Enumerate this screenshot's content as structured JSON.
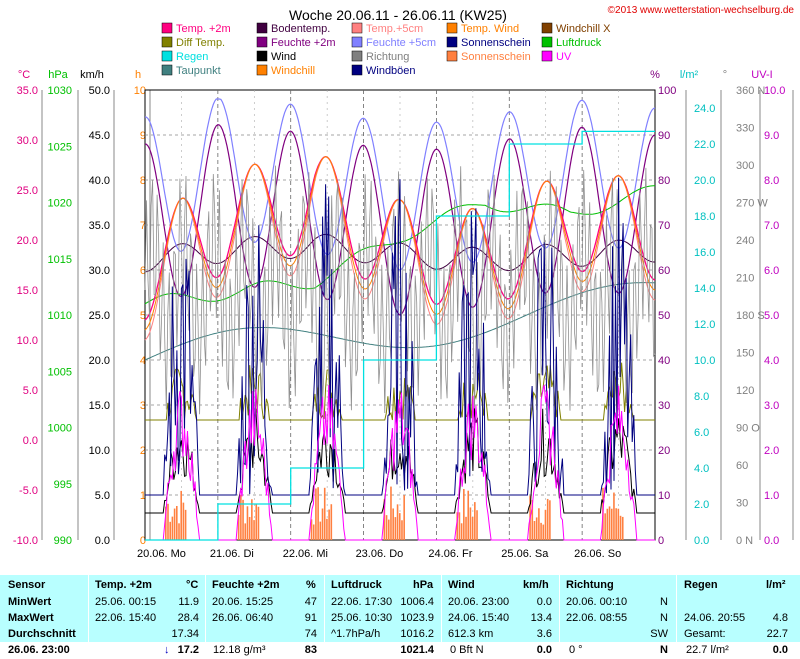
{
  "title": "Woche 20.06.11 - 26.06.11 (KW25)",
  "copyright": "©2013 www.wetterstation-wechselburg.de",
  "legend": [
    {
      "label": "Temp. +2m",
      "color": "#ff0080"
    },
    {
      "label": "Bodentemp.",
      "color": "#400040"
    },
    {
      "label": "Temp.+5cm",
      "color": "#ff8080"
    },
    {
      "label": "Temp. Wind",
      "color": "#ff8000"
    },
    {
      "label": "Windchill X",
      "color": "#804000"
    },
    {
      "label": "Diff Temp.",
      "color": "#808000"
    },
    {
      "label": "Feuchte +2m",
      "color": "#800080"
    },
    {
      "label": "Feuchte +5cm",
      "color": "#8080ff"
    },
    {
      "label": "Sonnenschein",
      "color": "#000080"
    },
    {
      "label": "Luftdruck",
      "color": "#00c000"
    },
    {
      "label": "Regen",
      "color": "#00e0e0"
    },
    {
      "label": "Wind",
      "color": "#000000"
    },
    {
      "label": "Richtung",
      "color": "#808080"
    },
    {
      "label": "Sonnenschein",
      "color": "#ff8040"
    },
    {
      "label": "UV",
      "color": "#ff00ff"
    },
    {
      "label": "Taupunkt",
      "color": "#408080"
    },
    {
      "label": "Windchill",
      "color": "#ff8000"
    },
    {
      "label": "Windböen",
      "color": "#000080"
    }
  ],
  "axes": {
    "temp": {
      "unit": "°C",
      "ticks": [
        "35.0",
        "30.0",
        "25.0",
        "20.0",
        "15.0",
        "10.0",
        "5.0",
        "0.0",
        "-5.0",
        "-10.0"
      ],
      "color": "#e00080"
    },
    "hpa": {
      "unit": "hPa",
      "ticks": [
        "1030",
        "1025",
        "1020",
        "1015",
        "1010",
        "1005",
        "1000",
        "995",
        "990"
      ],
      "color": "#00c000"
    },
    "kmh": {
      "unit": "km/h",
      "ticks": [
        "50.0",
        "45.0",
        "40.0",
        "35.0",
        "30.0",
        "25.0",
        "20.0",
        "15.0",
        "10.0",
        "5.0",
        "0.0"
      ],
      "color": "#000000"
    },
    "h": {
      "unit": "h",
      "ticks": [
        "10",
        "9",
        "8",
        "7",
        "6",
        "5",
        "4",
        "3",
        "2",
        "1",
        "0"
      ],
      "color": "#ff8000"
    },
    "pct": {
      "unit": "%",
      "ticks": [
        "100",
        "90",
        "80",
        "70",
        "60",
        "50",
        "40",
        "30",
        "20",
        "10",
        "0"
      ],
      "color": "#800080"
    },
    "rain": {
      "unit": "l/m²",
      "ticks": [
        "24.0",
        "22.0",
        "20.0",
        "18.0",
        "16.0",
        "14.0",
        "12.0",
        "10.0",
        "8.0",
        "6.0",
        "4.0",
        "2.0",
        "0.0"
      ],
      "color": "#00c0c0"
    },
    "dir": {
      "unit": "°",
      "ticks": [
        "360 N",
        "330",
        "300",
        "270 W",
        "240",
        "210",
        "180 S",
        "150",
        "120",
        "90  O",
        "60",
        "30",
        "0   N"
      ],
      "color": "#808080"
    },
    "uv": {
      "unit": "UV-I",
      "ticks": [
        "10.0",
        "9.0",
        "8.0",
        "7.0",
        "6.0",
        "5.0",
        "4.0",
        "3.0",
        "2.0",
        "1.0",
        "0.0"
      ],
      "color": "#c000c0"
    }
  },
  "days": [
    "20.06.  Mo",
    "21.06.  Di",
    "22.06.  Mi",
    "23.06.  Do",
    "24.06.  Fr",
    "25.06.  Sa",
    "26.06.  So"
  ],
  "chart_data": {
    "type": "line",
    "title": "Woche 20.06.11 - 26.06.11 (KW25)",
    "x": [
      "20.06.",
      "21.06.",
      "22.06.",
      "23.06.",
      "24.06.",
      "25.06.",
      "26.06."
    ],
    "ylim_temp": [
      -10,
      35
    ],
    "series": [
      {
        "name": "Temp. +2m",
        "unit": "°C",
        "values": [
          17,
          22,
          24,
          19,
          18,
          22,
          21
        ]
      },
      {
        "name": "Feuchte +2m",
        "unit": "%",
        "values": [
          70,
          75,
          72,
          68,
          70,
          74,
          72
        ]
      },
      {
        "name": "Luftdruck",
        "unit": "hPa",
        "values": [
          1011,
          1012,
          1013,
          1017,
          1020,
          1019,
          1021
        ]
      },
      {
        "name": "Regen",
        "unit": "l/m²",
        "values": [
          0.0,
          2.0,
          4.0,
          10.0,
          18.0,
          22.0,
          22.7
        ]
      }
    ]
  },
  "table": {
    "headers": {
      "sensor": "Sensor",
      "temp": "Temp. +2m",
      "temp_unit": "°C",
      "feuchte": "Feuchte +2m",
      "feuchte_unit": "%",
      "druck": "Luftdruck",
      "druck_unit": "hPa",
      "wind": "Wind",
      "wind_unit": "km/h",
      "richtung": "Richtung",
      "regen": "Regen",
      "regen_unit": "l/m²"
    },
    "rows": [
      {
        "label": "MinWert",
        "temp_time": "25.06.  00:15",
        "temp_val": "11.9",
        "feuchte_time": "20.06.  15:25",
        "feuchte_val": "47",
        "druck_time": "22.06.  17:30",
        "druck_val": "1006.4",
        "wind_time": "20.06.  23:00",
        "wind_val": "0.0",
        "richtung_time": "20.06.  00:10",
        "richtung_val": "N",
        "regen_time": "",
        "regen_val": ""
      },
      {
        "label": "MaxWert",
        "temp_time": "22.06.  15:40",
        "temp_val": "28.4",
        "feuchte_time": "26.06.  06:40",
        "feuchte_val": "91",
        "druck_time": "25.06.  10:30",
        "druck_val": "1023.9",
        "wind_time": "24.06.  15:40",
        "wind_val": "13.4",
        "richtung_time": "22.06.  08:55",
        "richtung_val": "N",
        "regen_time": "24.06.  20:55",
        "regen_val": "4.8"
      },
      {
        "label": "Durchschnitt",
        "temp_time": "",
        "temp_val": "17.34",
        "feuchte_time": "",
        "feuchte_val": "74",
        "druck_time": "^1.7hPa/h",
        "druck_val": "1016.2",
        "wind_time": "612.3 km",
        "wind_val": "3.6",
        "richtung_time": "",
        "richtung_val": "SW",
        "regen_time": "Gesamt:",
        "regen_val": "22.7"
      }
    ],
    "current": {
      "label": "26.06. 23:00",
      "temp_arrow": "↓",
      "temp_val": "17.2",
      "feuchte_abs": "12.18 g/m³",
      "feuchte_val": "83",
      "druck_val": "1021.4",
      "wind_bft": "0 Bft N",
      "wind_val": "0.0",
      "richtung_deg": "0 °",
      "richtung_val": "N",
      "regen_day": "22.7 l/m²",
      "regen_val": "0.0"
    }
  }
}
